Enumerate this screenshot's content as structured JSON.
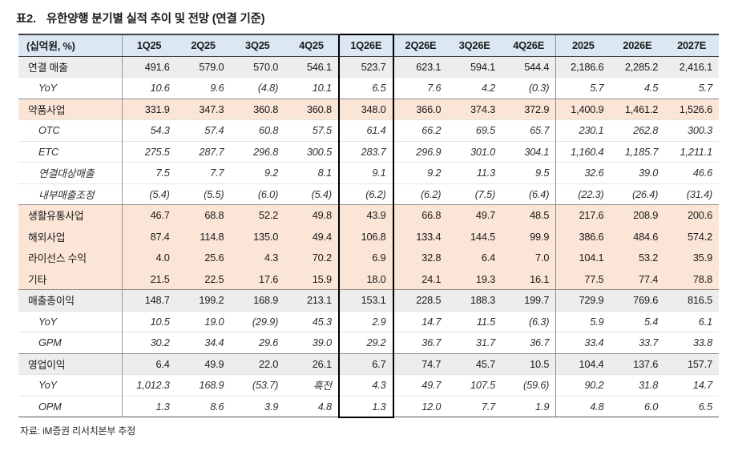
{
  "page": {
    "title_prefix": "표2.",
    "title": "유한양행 분기별 실적 추이 및 전망 (연결 기준)",
    "source": "자료: iM증권 리서치본부 추정"
  },
  "colors": {
    "header_bg": "#dbe7f3",
    "segment_bg": "#fbe5d6",
    "summary_bg": "#ededed",
    "highlight_border": "#000000",
    "major_border": "#3f3f3f"
  },
  "table": {
    "unit_label": "(십억원, %)",
    "columns": [
      "1Q25",
      "2Q25",
      "3Q25",
      "4Q25",
      "1Q26E",
      "2Q26E",
      "3Q26E",
      "4Q26E",
      "2025",
      "2026E",
      "2027E"
    ],
    "highlight_column": "1Q26E",
    "annual_divider_column": "2025",
    "rows": [
      {
        "label": "연결 매출",
        "style": "sum",
        "section": false,
        "values": [
          "491.6",
          "579.0",
          "570.0",
          "546.1",
          "523.7",
          "623.1",
          "594.1",
          "544.4",
          "2,186.6",
          "2,285.2",
          "2,416.1"
        ]
      },
      {
        "label": "YoY",
        "style": "sub",
        "section": false,
        "values": [
          "10.6",
          "9.6",
          "(4.8)",
          "10.1",
          "6.5",
          "7.6",
          "4.2",
          "(0.3)",
          "5.7",
          "4.5",
          "5.7"
        ]
      },
      {
        "label": "약품사업",
        "style": "seg",
        "section": true,
        "values": [
          "331.9",
          "347.3",
          "360.8",
          "360.8",
          "348.0",
          "366.0",
          "374.3",
          "372.9",
          "1,400.9",
          "1,461.2",
          "1,526.6"
        ]
      },
      {
        "label": "OTC",
        "style": "sub",
        "section": false,
        "values": [
          "54.3",
          "57.4",
          "60.8",
          "57.5",
          "61.4",
          "66.2",
          "69.5",
          "65.7",
          "230.1",
          "262.8",
          "300.3"
        ]
      },
      {
        "label": "ETC",
        "style": "sub",
        "section": false,
        "values": [
          "275.5",
          "287.7",
          "296.8",
          "300.5",
          "283.7",
          "296.9",
          "301.0",
          "304.1",
          "1,160.4",
          "1,185.7",
          "1,211.1"
        ]
      },
      {
        "label": "연결대상매출",
        "style": "sub",
        "section": false,
        "values": [
          "7.5",
          "7.7",
          "9.2",
          "8.1",
          "9.1",
          "9.2",
          "11.3",
          "9.5",
          "32.6",
          "39.0",
          "46.6"
        ]
      },
      {
        "label": "내부매출조정",
        "style": "sub",
        "section": false,
        "values": [
          "(5.4)",
          "(5.5)",
          "(6.0)",
          "(5.4)",
          "(6.2)",
          "(6.2)",
          "(7.5)",
          "(6.4)",
          "(22.3)",
          "(26.4)",
          "(31.4)"
        ]
      },
      {
        "label": "생활유통사업",
        "style": "seg",
        "section": true,
        "values": [
          "46.7",
          "68.8",
          "52.2",
          "49.8",
          "43.9",
          "66.8",
          "49.7",
          "48.5",
          "217.6",
          "208.9",
          "200.6"
        ]
      },
      {
        "label": "해외사업",
        "style": "seg",
        "section": false,
        "values": [
          "87.4",
          "114.8",
          "135.0",
          "49.4",
          "106.8",
          "133.4",
          "144.5",
          "99.9",
          "386.6",
          "484.6",
          "574.2"
        ]
      },
      {
        "label": "라이선스 수익",
        "style": "seg",
        "section": false,
        "values": [
          "4.0",
          "25.6",
          "4.3",
          "70.2",
          "6.9",
          "32.8",
          "6.4",
          "7.0",
          "104.1",
          "53.2",
          "35.9"
        ]
      },
      {
        "label": "기타",
        "style": "seg",
        "section": false,
        "values": [
          "21.5",
          "22.5",
          "17.6",
          "15.9",
          "18.0",
          "24.1",
          "19.3",
          "16.1",
          "77.5",
          "77.4",
          "78.8"
        ]
      },
      {
        "label": "매출총이익",
        "style": "sum",
        "section": true,
        "values": [
          "148.7",
          "199.2",
          "168.9",
          "213.1",
          "153.1",
          "228.5",
          "188.3",
          "199.7",
          "729.9",
          "769.6",
          "816.5"
        ]
      },
      {
        "label": "YoY",
        "style": "sub",
        "section": false,
        "values": [
          "10.5",
          "19.0",
          "(29.9)",
          "45.3",
          "2.9",
          "14.7",
          "11.5",
          "(6.3)",
          "5.9",
          "5.4",
          "6.1"
        ]
      },
      {
        "label": "GPM",
        "style": "sub",
        "section": false,
        "values": [
          "30.2",
          "34.4",
          "29.6",
          "39.0",
          "29.2",
          "36.7",
          "31.7",
          "36.7",
          "33.4",
          "33.7",
          "33.8"
        ]
      },
      {
        "label": "영업이익",
        "style": "sum",
        "section": true,
        "values": [
          "6.4",
          "49.9",
          "22.0",
          "26.1",
          "6.7",
          "74.7",
          "45.7",
          "10.5",
          "104.4",
          "137.6",
          "157.7"
        ]
      },
      {
        "label": "YoY",
        "style": "sub",
        "section": false,
        "values": [
          "1,012.3",
          "168.9",
          "(53.7)",
          "흑전",
          "4.3",
          "49.7",
          "107.5",
          "(59.6)",
          "90.2",
          "31.8",
          "14.7"
        ]
      },
      {
        "label": "OPM",
        "style": "sub",
        "section": false,
        "values": [
          "1.3",
          "8.6",
          "3.9",
          "4.8",
          "1.3",
          "12.0",
          "7.7",
          "1.9",
          "4.8",
          "6.0",
          "6.5"
        ]
      }
    ]
  }
}
